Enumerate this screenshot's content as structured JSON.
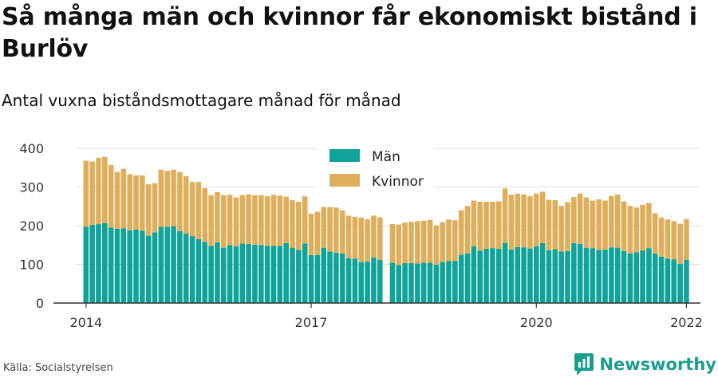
{
  "title": "Så många män och kvinnor får ekonomiskt bistånd i Burlöv",
  "subtitle": "Antal vuxna biståndsmottagare månad för månad",
  "source": "Källa: Socialstyrelsen",
  "brand": "Newsworthy",
  "colors": {
    "men": "#0fa39a",
    "women": "#dfae5b",
    "grid": "#dddddd",
    "axis": "#333333"
  },
  "chart_data": {
    "type": "bar",
    "stacked": true,
    "title": "Så många män och kvinnor får ekonomiskt bistånd i Burlöv",
    "subtitle": "Antal vuxna biståndsmottagare månad för månad",
    "x_start": "2014-01",
    "x_ticks": [
      "2014",
      "2017",
      "2020",
      "2022"
    ],
    "y_ticks": [
      0,
      100,
      200,
      300,
      400
    ],
    "ylim": [
      0,
      400
    ],
    "legend_position": "top-center",
    "gap_months": [
      "2017-12"
    ],
    "series": [
      {
        "name": "Män",
        "values": [
          197,
          202,
          204,
          207,
          195,
          192,
          193,
          188,
          190,
          187,
          174,
          183,
          197,
          197,
          198,
          186,
          180,
          173,
          165,
          158,
          148,
          157,
          143,
          150,
          147,
          154,
          153,
          151,
          150,
          148,
          148,
          148,
          155,
          143,
          137,
          154,
          124,
          124,
          143,
          133,
          130,
          128,
          116,
          115,
          106,
          107,
          118,
          112,
          null,
          104,
          98,
          103,
          103,
          102,
          104,
          104,
          99,
          106,
          109,
          109,
          125,
          128,
          147,
          135,
          140,
          142,
          140,
          156,
          138,
          145,
          144,
          141,
          147,
          155,
          136,
          139,
          133,
          134,
          155,
          153,
          143,
          142,
          137,
          138,
          144,
          143,
          134,
          128,
          131,
          136,
          142,
          128,
          120,
          115,
          113,
          101,
          112
        ],
        "color_key": "men"
      },
      {
        "name": "Kvinnor",
        "values": [
          171,
          164,
          171,
          171,
          162,
          147,
          154,
          145,
          140,
          143,
          133,
          127,
          148,
          145,
          147,
          153,
          148,
          140,
          148,
          139,
          131,
          130,
          136,
          130,
          126,
          125,
          128,
          128,
          129,
          128,
          132,
          130,
          120,
          123,
          125,
          122,
          107,
          112,
          105,
          115,
          117,
          112,
          110,
          108,
          115,
          110,
          108,
          110,
          null,
          100,
          105,
          105,
          107,
          110,
          109,
          111,
          102,
          103,
          107,
          105,
          115,
          123,
          118,
          127,
          122,
          120,
          123,
          140,
          142,
          138,
          137,
          135,
          136,
          133,
          131,
          127,
          118,
          127,
          119,
          130,
          130,
          123,
          131,
          127,
          133,
          138,
          129,
          123,
          116,
          118,
          117,
          104,
          101,
          101,
          99,
          104,
          105
        ],
        "color_key": "women"
      }
    ]
  }
}
